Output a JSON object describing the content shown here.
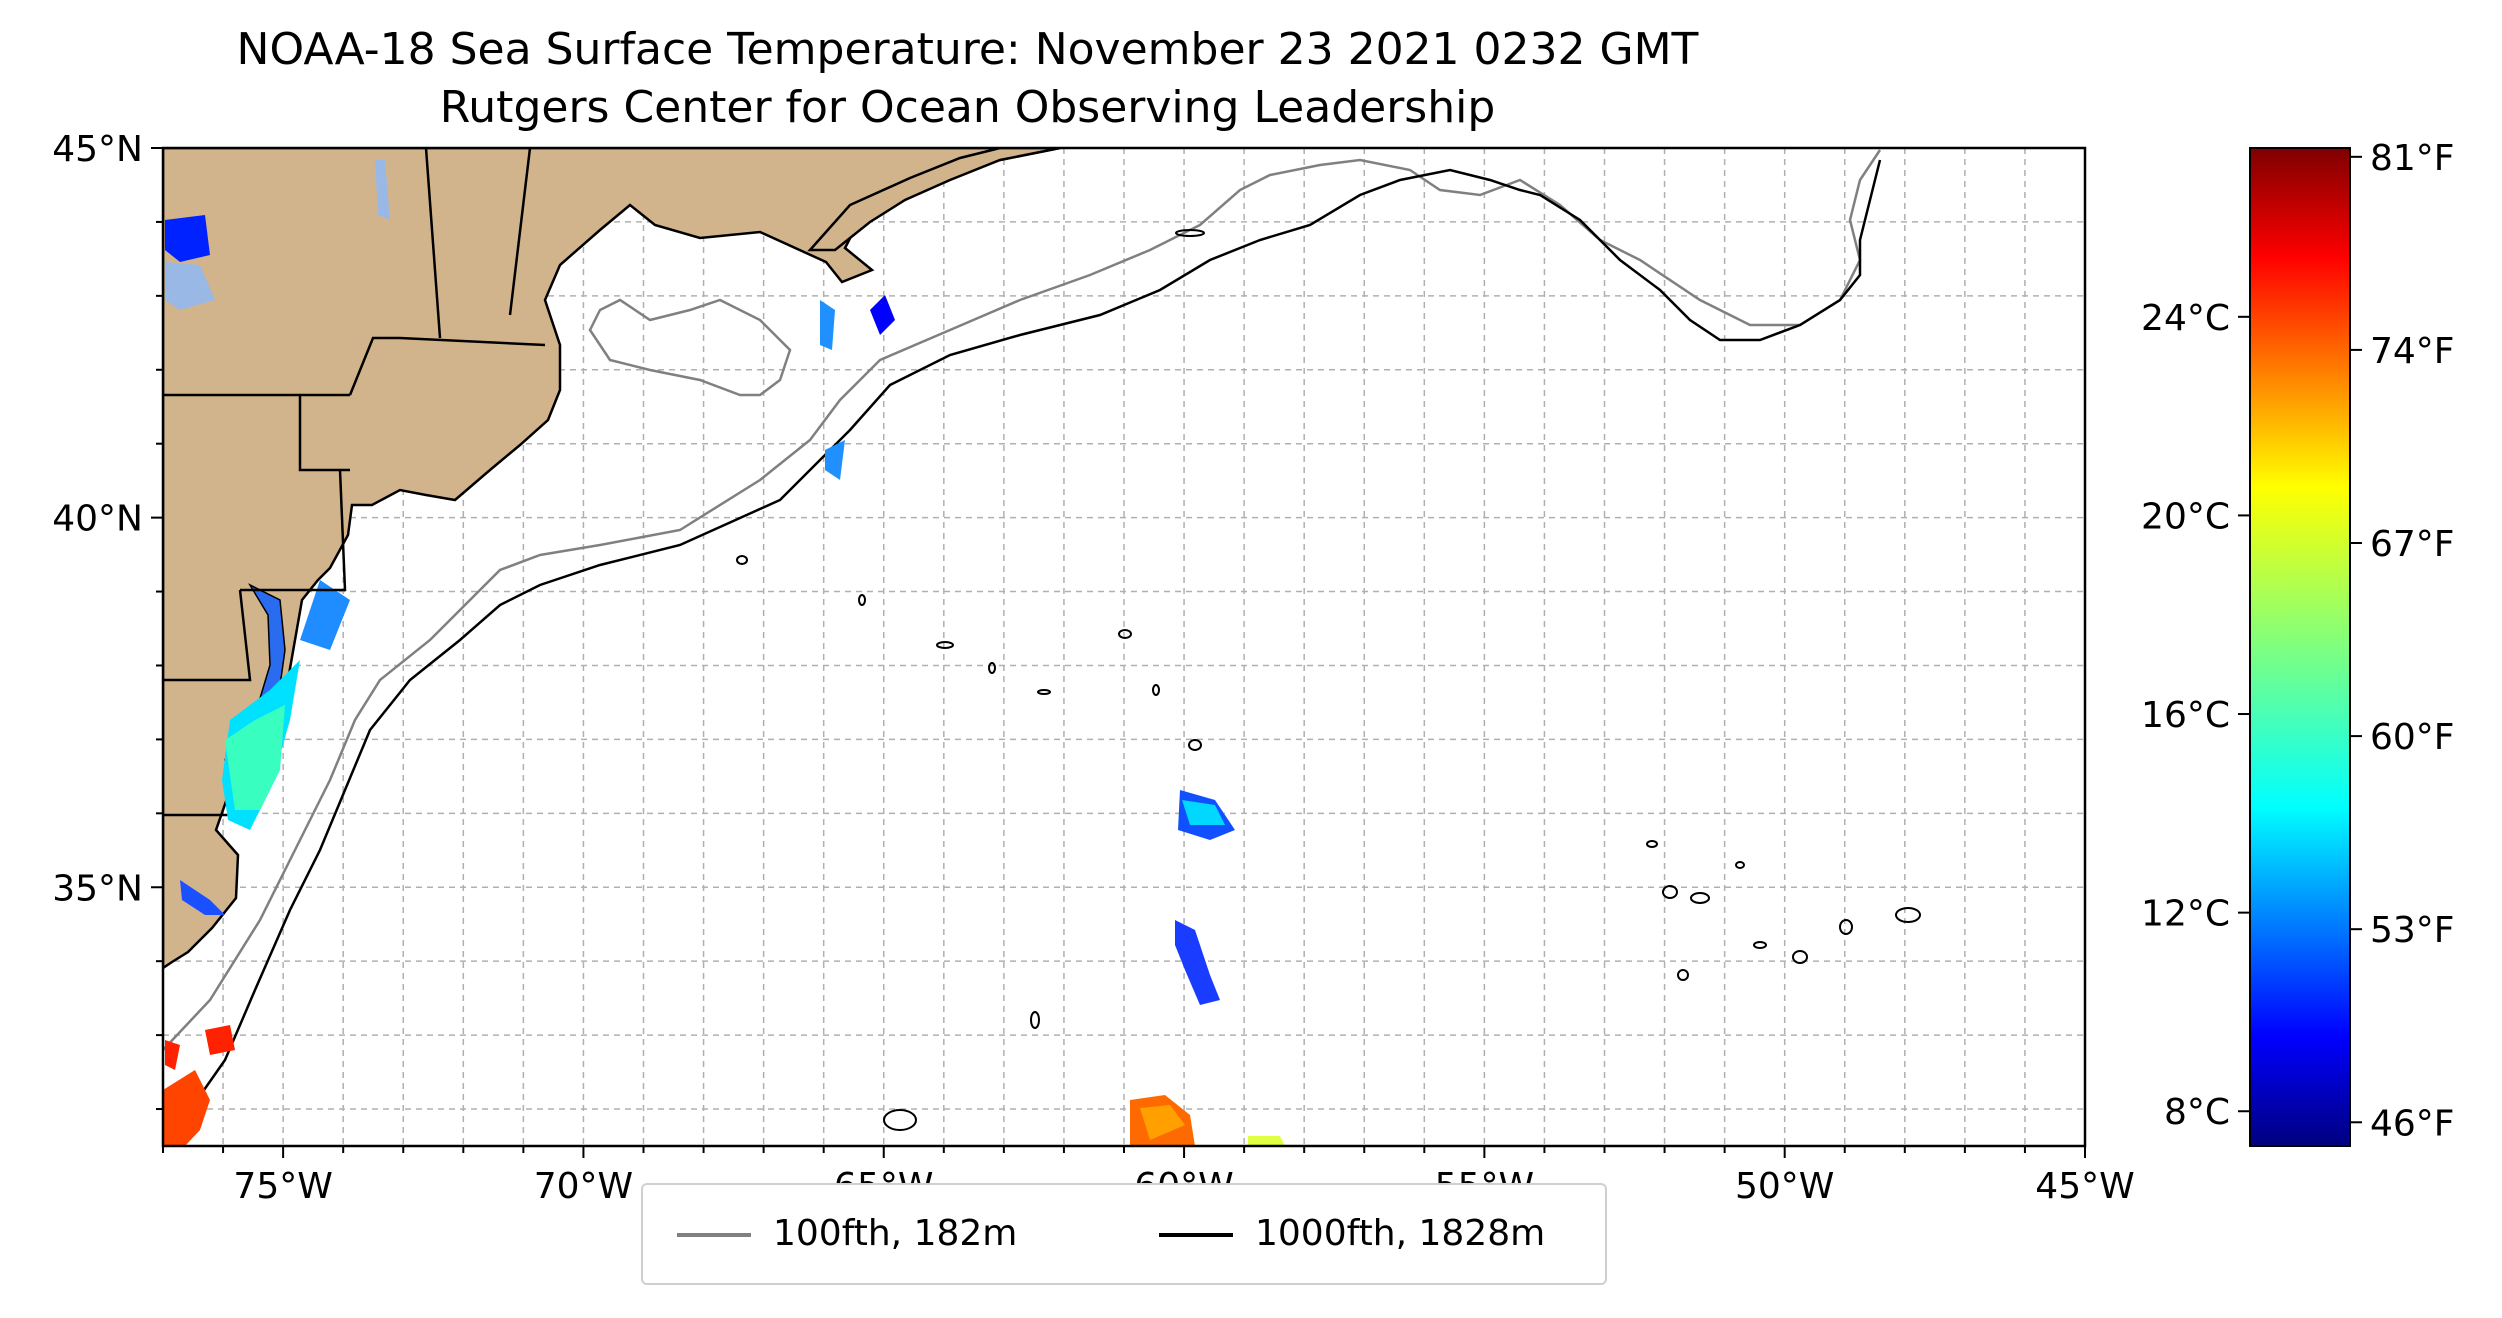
{
  "title": "NOAA-18 Sea Surface Temperature: November 23 2021 0232 GMT",
  "subtitle": "Rutgers Center for Ocean Observing Leadership",
  "map": {
    "lon_range": [
      -77,
      -45
    ],
    "lat_range": [
      31.5,
      45
    ],
    "x_ticks": [
      {
        "lon": -75,
        "label": "75°W"
      },
      {
        "lon": -70,
        "label": "70°W"
      },
      {
        "lon": -65,
        "label": "65°W"
      },
      {
        "lon": -60,
        "label": "60°W"
      },
      {
        "lon": -55,
        "label": "55°W"
      },
      {
        "lon": -50,
        "label": "50°W"
      },
      {
        "lon": -45,
        "label": "45°W"
      }
    ],
    "y_ticks": [
      {
        "lat": 45,
        "label": "45°N"
      },
      {
        "lat": 40,
        "label": "40°N"
      },
      {
        "lat": 35,
        "label": "35°N"
      }
    ],
    "land_color": "#d2b48c",
    "grid": "dashed, every 1°"
  },
  "legend": [
    {
      "label": "100fth, 182m",
      "color": "#808080"
    },
    {
      "label": "1000fth, 1828m",
      "color": "#000000"
    }
  ],
  "colorbar": {
    "colormap": "jet",
    "celsius_ticks": [
      "24°C",
      "20°C",
      "16°C",
      "12°C",
      "8°C"
    ],
    "fahrenheit_ticks": [
      "81°F",
      "74°F",
      "67°F",
      "60°F",
      "53°F",
      "46°F"
    ]
  }
}
